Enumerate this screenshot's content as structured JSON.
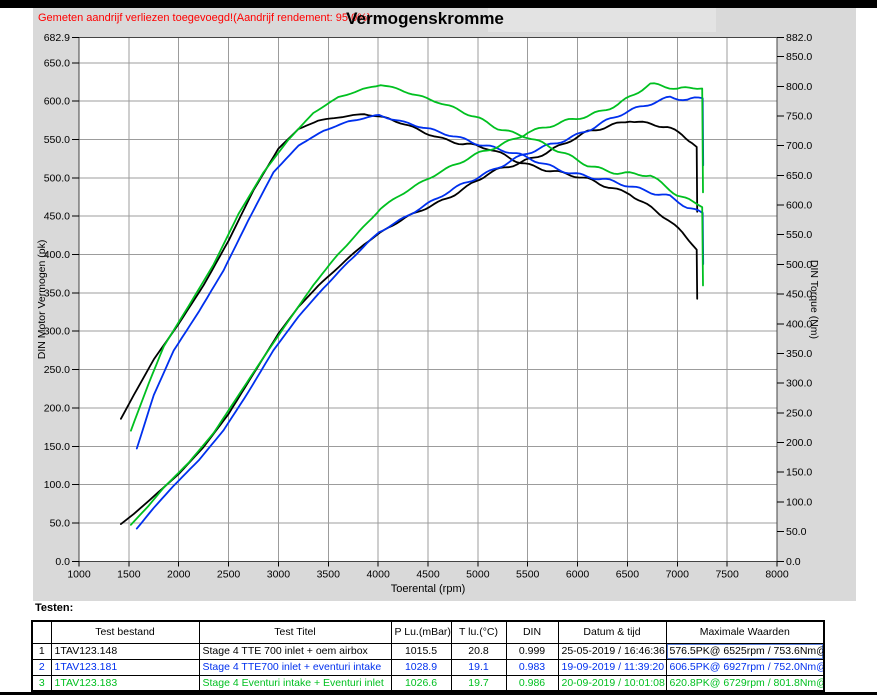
{
  "chart_header": {
    "warning": "Gemeten aandrijf verliezen toegevoegd!(Aandrijf rendement: 95.0%)",
    "title": "Vermogenskromme"
  },
  "chart_data": {
    "type": "line",
    "title": "Vermogenskromme",
    "grid": true,
    "x_axis": {
      "label": "Toerental (rpm)",
      "min": 1000,
      "max": 8000,
      "ticks": [
        1000,
        1500,
        2000,
        2500,
        3000,
        3500,
        4000,
        4500,
        5000,
        5500,
        6000,
        6500,
        7000,
        7500,
        8000
      ]
    },
    "y_left": {
      "label": "DIN Motor Vermogen (pk)",
      "ticks": [
        682.9,
        650,
        600,
        550,
        500,
        450,
        400,
        350,
        300,
        250,
        200,
        150,
        100,
        50,
        0
      ]
    },
    "y_right": {
      "label": "DIN Torque (Nm)",
      "ticks": [
        882,
        850,
        800,
        750,
        700,
        650,
        600,
        550,
        500,
        450,
        400,
        350,
        300,
        250,
        200,
        150,
        100,
        50,
        0
      ]
    },
    "series": [
      {
        "name": "Stage 4 TTE 700 inlet + oem airbox",
        "color": "#000000",
        "peak_power": "576.5PK@ 6525rpm",
        "peak_torque": "753.6Nm@ 3863rpm",
        "torque_nm": [
          [
            1420,
            240
          ],
          [
            1550,
            280
          ],
          [
            1750,
            340
          ],
          [
            2000,
            400
          ],
          [
            2250,
            465
          ],
          [
            2500,
            540
          ],
          [
            2750,
            625
          ],
          [
            3000,
            695
          ],
          [
            3200,
            728
          ],
          [
            3400,
            742
          ],
          [
            3600,
            748
          ],
          [
            3863,
            754
          ],
          [
            4100,
            745
          ],
          [
            4350,
            730
          ],
          [
            4600,
            715
          ],
          [
            4850,
            703
          ],
          [
            5100,
            694
          ],
          [
            5350,
            678
          ],
          [
            5600,
            664
          ],
          [
            5850,
            652
          ],
          [
            6100,
            643
          ],
          [
            6350,
            630
          ],
          [
            6525,
            620
          ],
          [
            6700,
            598
          ],
          [
            6900,
            575
          ],
          [
            7050,
            553
          ],
          [
            7150,
            537
          ],
          [
            7195,
            528
          ],
          [
            7200,
            445
          ]
        ],
        "power_pk": [
          [
            1420,
            48.5
          ],
          [
            1550,
            61.8
          ],
          [
            1750,
            84.7
          ],
          [
            2000,
            113.9
          ],
          [
            2250,
            149.0
          ],
          [
            2500,
            192.2
          ],
          [
            2750,
            244.7
          ],
          [
            3000,
            296.9
          ],
          [
            3200,
            331.7
          ],
          [
            3400,
            359.2
          ],
          [
            3600,
            383.4
          ],
          [
            3863,
            414.7
          ],
          [
            4100,
            434.9
          ],
          [
            4350,
            452.2
          ],
          [
            4600,
            468.3
          ],
          [
            4850,
            485.5
          ],
          [
            5100,
            504.0
          ],
          [
            5350,
            516.5
          ],
          [
            5600,
            529.5
          ],
          [
            5850,
            543.1
          ],
          [
            6100,
            558.5
          ],
          [
            6350,
            569.6
          ],
          [
            6525,
            576.5
          ],
          [
            6700,
            570.5
          ],
          [
            6900,
            564.9
          ],
          [
            7050,
            555.1
          ],
          [
            7150,
            546.7
          ],
          [
            7195,
            540.9
          ],
          [
            7200,
            456.2
          ]
        ]
      },
      {
        "name": "Stage 4 TTE700 inlet + eventuri intake",
        "color": "#0030ee",
        "peak_power": "606.5PK@ 6927rpm",
        "peak_torque": "752.0Nm@ 4010rpm",
        "torque_nm": [
          [
            1580,
            190
          ],
          [
            1750,
            280
          ],
          [
            1950,
            355
          ],
          [
            2200,
            420
          ],
          [
            2450,
            490
          ],
          [
            2700,
            575
          ],
          [
            2950,
            655
          ],
          [
            3200,
            700
          ],
          [
            3450,
            725
          ],
          [
            3700,
            740
          ],
          [
            4010,
            752
          ],
          [
            4300,
            738
          ],
          [
            4600,
            722
          ],
          [
            4900,
            710
          ],
          [
            5200,
            695
          ],
          [
            5500,
            678
          ],
          [
            5800,
            662
          ],
          [
            6100,
            648
          ],
          [
            6400,
            636
          ],
          [
            6700,
            625
          ],
          [
            6927,
            615
          ],
          [
            7100,
            595
          ],
          [
            7250,
            584
          ],
          [
            7255,
            584
          ],
          [
            7260,
            498
          ]
        ],
        "power_pk": [
          [
            1580,
            42.7
          ],
          [
            1750,
            69.8
          ],
          [
            1950,
            98.6
          ],
          [
            2200,
            131.6
          ],
          [
            2450,
            170.9
          ],
          [
            2700,
            221.1
          ],
          [
            2950,
            275.1
          ],
          [
            3200,
            319.0
          ],
          [
            3450,
            356.2
          ],
          [
            3700,
            389.9
          ],
          [
            4010,
            429.4
          ],
          [
            4300,
            451.9
          ],
          [
            4600,
            472.9
          ],
          [
            4900,
            495.4
          ],
          [
            5200,
            514.6
          ],
          [
            5500,
            531.0
          ],
          [
            5800,
            546.7
          ],
          [
            6100,
            562.8
          ],
          [
            6400,
            579.6
          ],
          [
            6700,
            596.3
          ],
          [
            6927,
            606.5
          ],
          [
            7100,
            601.5
          ],
          [
            7250,
            602.9
          ],
          [
            7255,
            602.9
          ],
          [
            7260,
            515.5
          ]
        ]
      },
      {
        "name": "Stage 4 Eventuri intake + Eventuri inlet",
        "color": "#00c020",
        "peak_power": "620.8PK@ 6729rpm",
        "peak_torque": "801.8Nm@ 4025rpm",
        "torque_nm": [
          [
            1520,
            220
          ],
          [
            1700,
            300
          ],
          [
            1850,
            362
          ],
          [
            2100,
            430
          ],
          [
            2350,
            500
          ],
          [
            2600,
            585
          ],
          [
            2850,
            655
          ],
          [
            3100,
            710
          ],
          [
            3350,
            755
          ],
          [
            3600,
            782
          ],
          [
            3850,
            795
          ],
          [
            4025,
            802
          ],
          [
            4300,
            790
          ],
          [
            4600,
            775
          ],
          [
            4900,
            752
          ],
          [
            5200,
            730
          ],
          [
            5500,
            716
          ],
          [
            5800,
            690
          ],
          [
            6100,
            668
          ],
          [
            6400,
            655
          ],
          [
            6729,
            648
          ],
          [
            7000,
            618
          ],
          [
            7200,
            604
          ],
          [
            7250,
            600
          ],
          [
            7258,
            468
          ]
        ],
        "power_pk": [
          [
            1520,
            47.6
          ],
          [
            1700,
            72.6
          ],
          [
            1850,
            96.1
          ],
          [
            2100,
            128.6
          ],
          [
            2350,
            167.3
          ],
          [
            2600,
            216.6
          ],
          [
            2850,
            265.8
          ],
          [
            3100,
            313.4
          ],
          [
            3350,
            360.1
          ],
          [
            3600,
            400.9
          ],
          [
            3850,
            435.8
          ],
          [
            4025,
            459.6
          ],
          [
            4300,
            483.7
          ],
          [
            4600,
            507.6
          ],
          [
            4900,
            524.7
          ],
          [
            5200,
            540.5
          ],
          [
            5500,
            560.7
          ],
          [
            5800,
            569.8
          ],
          [
            6100,
            580.2
          ],
          [
            6400,
            596.9
          ],
          [
            6729,
            620.8
          ],
          [
            7000,
            616.0
          ],
          [
            7200,
            619.1
          ],
          [
            7250,
            619.4
          ],
          [
            7258,
            483.6
          ]
        ]
      }
    ]
  },
  "table": {
    "heading": "Testen:",
    "columns": [
      "",
      "Test bestand",
      "Test Titel",
      "P Lu.(mBar)",
      "T lu.(°C)",
      "DIN",
      "Datum & tijd",
      "Maximale Waarden"
    ],
    "rows": [
      {
        "num": "1",
        "file": "1TAV123.148",
        "title": "Stage 4 TTE 700 inlet + oem airbox",
        "p_lu": "1015.5",
        "t_lu": "20.8",
        "din": "0.999",
        "datetime": "25-05-2019 / 16:46:36",
        "max_values": "576.5PK@ 6525rpm / 753.6Nm@ 3863rpm",
        "color": "#000000"
      },
      {
        "num": "2",
        "file": "1TAV123.181",
        "title": "Stage 4 TTE700 inlet + eventuri intake",
        "p_lu": "1028.9",
        "t_lu": "19.1",
        "din": "0.983",
        "datetime": "19-09-2019 / 11:39:20",
        "max_values": "606.5PK@ 6927rpm / 752.0Nm@ 4010rpm",
        "color": "#0030ee"
      },
      {
        "num": "3",
        "file": "1TAV123.183",
        "title": "Stage 4 Eventuri intake + Eventuri inlet",
        "p_lu": "1026.6",
        "t_lu": "19.7",
        "din": "0.986",
        "datetime": "20-09-2019 / 10:01:08",
        "max_values": "620.8PK@ 6729rpm / 801.8Nm@ 4025rpm",
        "color": "#00c020"
      }
    ]
  }
}
